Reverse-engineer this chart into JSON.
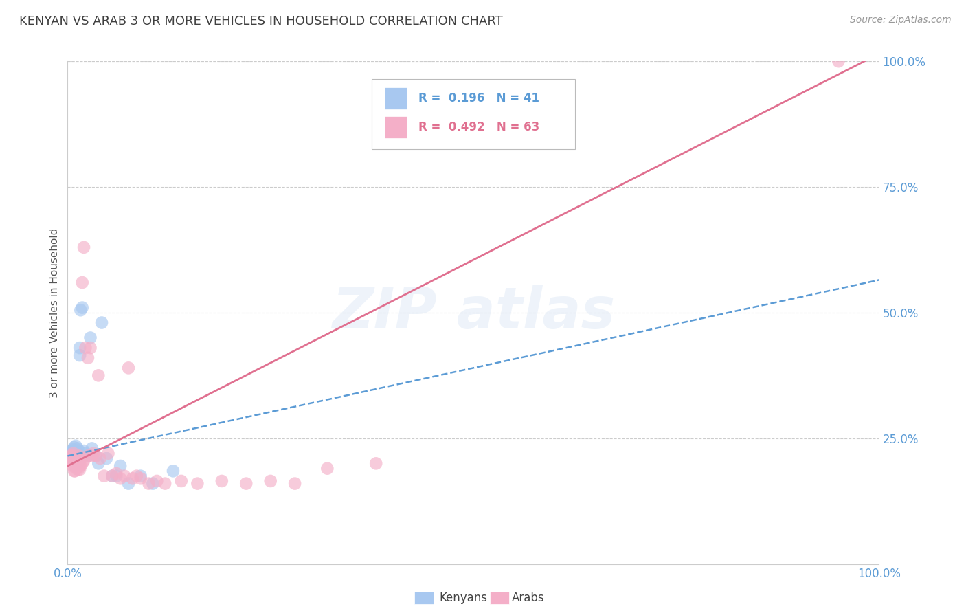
{
  "title": "KENYAN VS ARAB 3 OR MORE VEHICLES IN HOUSEHOLD CORRELATION CHART",
  "source": "Source: ZipAtlas.com",
  "ylabel": "3 or more Vehicles in Household",
  "xlim": [
    0,
    1
  ],
  "ylim": [
    0,
    1
  ],
  "xtick_labels": [
    "0.0%",
    "100.0%"
  ],
  "ytick_labels": [
    "25.0%",
    "50.0%",
    "75.0%",
    "100.0%"
  ],
  "ytick_positions": [
    0.25,
    0.5,
    0.75,
    1.0
  ],
  "legend_r_kenyan": "R =  0.196",
  "legend_n_kenyan": "N = 41",
  "legend_r_arab": "R =  0.492",
  "legend_n_arab": "N = 63",
  "kenyan_color": "#a8c8f0",
  "arab_color": "#f4afc8",
  "kenyan_line_color": "#5b9bd5",
  "arab_line_color": "#e07090",
  "background_color": "#ffffff",
  "grid_color": "#cccccc",
  "title_color": "#404040",
  "axis_label_color": "#5b9bd5",
  "kenyan_x": [
    0.003,
    0.004,
    0.005,
    0.005,
    0.006,
    0.007,
    0.007,
    0.008,
    0.008,
    0.009,
    0.009,
    0.01,
    0.01,
    0.011,
    0.011,
    0.012,
    0.012,
    0.013,
    0.013,
    0.014,
    0.014,
    0.015,
    0.015,
    0.016,
    0.018,
    0.02,
    0.022,
    0.025,
    0.028,
    0.03,
    0.035,
    0.038,
    0.042,
    0.048,
    0.055,
    0.06,
    0.065,
    0.075,
    0.09,
    0.105,
    0.13
  ],
  "kenyan_y": [
    0.215,
    0.22,
    0.225,
    0.215,
    0.218,
    0.222,
    0.228,
    0.21,
    0.232,
    0.225,
    0.195,
    0.205,
    0.235,
    0.215,
    0.222,
    0.2,
    0.23,
    0.21,
    0.218,
    0.225,
    0.205,
    0.415,
    0.43,
    0.505,
    0.51,
    0.225,
    0.22,
    0.215,
    0.45,
    0.23,
    0.215,
    0.2,
    0.48,
    0.21,
    0.175,
    0.175,
    0.195,
    0.16,
    0.175,
    0.16,
    0.185
  ],
  "arab_x": [
    0.003,
    0.004,
    0.004,
    0.005,
    0.005,
    0.006,
    0.006,
    0.007,
    0.007,
    0.007,
    0.008,
    0.008,
    0.009,
    0.009,
    0.01,
    0.01,
    0.011,
    0.011,
    0.012,
    0.012,
    0.013,
    0.013,
    0.014,
    0.014,
    0.015,
    0.015,
    0.016,
    0.016,
    0.018,
    0.018,
    0.02,
    0.02,
    0.022,
    0.025,
    0.025,
    0.028,
    0.03,
    0.032,
    0.035,
    0.038,
    0.04,
    0.045,
    0.05,
    0.055,
    0.06,
    0.065,
    0.07,
    0.075,
    0.08,
    0.085,
    0.09,
    0.1,
    0.11,
    0.12,
    0.14,
    0.16,
    0.19,
    0.22,
    0.25,
    0.28,
    0.32,
    0.38,
    0.95
  ],
  "arab_y": [
    0.2,
    0.21,
    0.215,
    0.205,
    0.215,
    0.195,
    0.208,
    0.2,
    0.215,
    0.22,
    0.185,
    0.2,
    0.185,
    0.21,
    0.195,
    0.205,
    0.19,
    0.2,
    0.195,
    0.21,
    0.188,
    0.2,
    0.195,
    0.215,
    0.188,
    0.2,
    0.195,
    0.21,
    0.56,
    0.2,
    0.63,
    0.205,
    0.43,
    0.41,
    0.215,
    0.43,
    0.215,
    0.22,
    0.215,
    0.375,
    0.21,
    0.175,
    0.22,
    0.175,
    0.18,
    0.17,
    0.175,
    0.39,
    0.17,
    0.175,
    0.17,
    0.16,
    0.165,
    0.16,
    0.165,
    0.16,
    0.165,
    0.16,
    0.165,
    0.16,
    0.19,
    0.2,
    1.0
  ],
  "kenyan_line_slope": 0.35,
  "kenyan_line_intercept": 0.215,
  "arab_line_slope": 0.82,
  "arab_line_intercept": 0.195
}
